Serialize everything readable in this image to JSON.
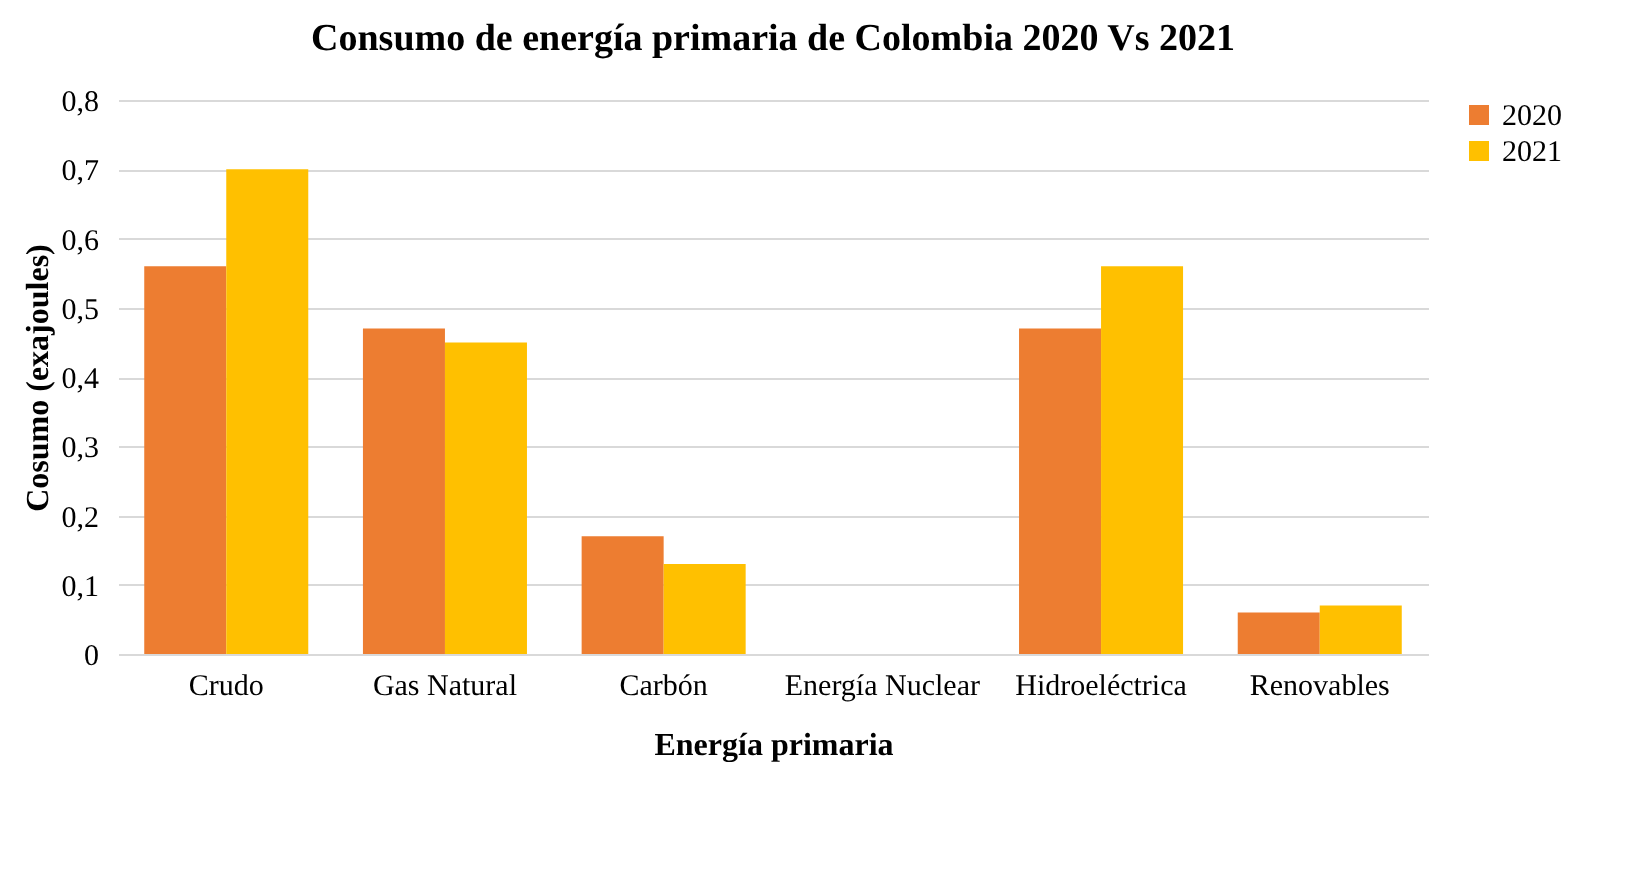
{
  "chart_data": {
    "type": "bar",
    "title": "Consumo de energía primaria  de Colombia 2020 Vs 2021",
    "xlabel": "Energía primaria",
    "ylabel": "Cosumo (exajoules)",
    "categories": [
      "Crudo",
      "Gas Natural",
      "Carbón",
      "Energía Nuclear",
      "Hidroeléctrica",
      "Renovables"
    ],
    "series": [
      {
        "name": "2020",
        "color": "#ed7d31",
        "values": [
          0.56,
          0.47,
          0.17,
          0,
          0.47,
          0.06
        ]
      },
      {
        "name": "2021",
        "color": "#ffc000",
        "values": [
          0.7,
          0.45,
          0.13,
          0,
          0.56,
          0.07
        ]
      }
    ],
    "ylim": [
      0,
      0.8
    ],
    "yticks": [
      {
        "value": 0,
        "label": "0"
      },
      {
        "value": 0.1,
        "label": "0,1"
      },
      {
        "value": 0.2,
        "label": "0,2"
      },
      {
        "value": 0.3,
        "label": "0,3"
      },
      {
        "value": 0.4,
        "label": "0,4"
      },
      {
        "value": 0.5,
        "label": "0,5"
      },
      {
        "value": 0.6,
        "label": "0,6"
      },
      {
        "value": 0.7,
        "label": "0,7"
      },
      {
        "value": 0.8,
        "label": "0,8"
      }
    ],
    "grid": "y",
    "legend": "right"
  }
}
